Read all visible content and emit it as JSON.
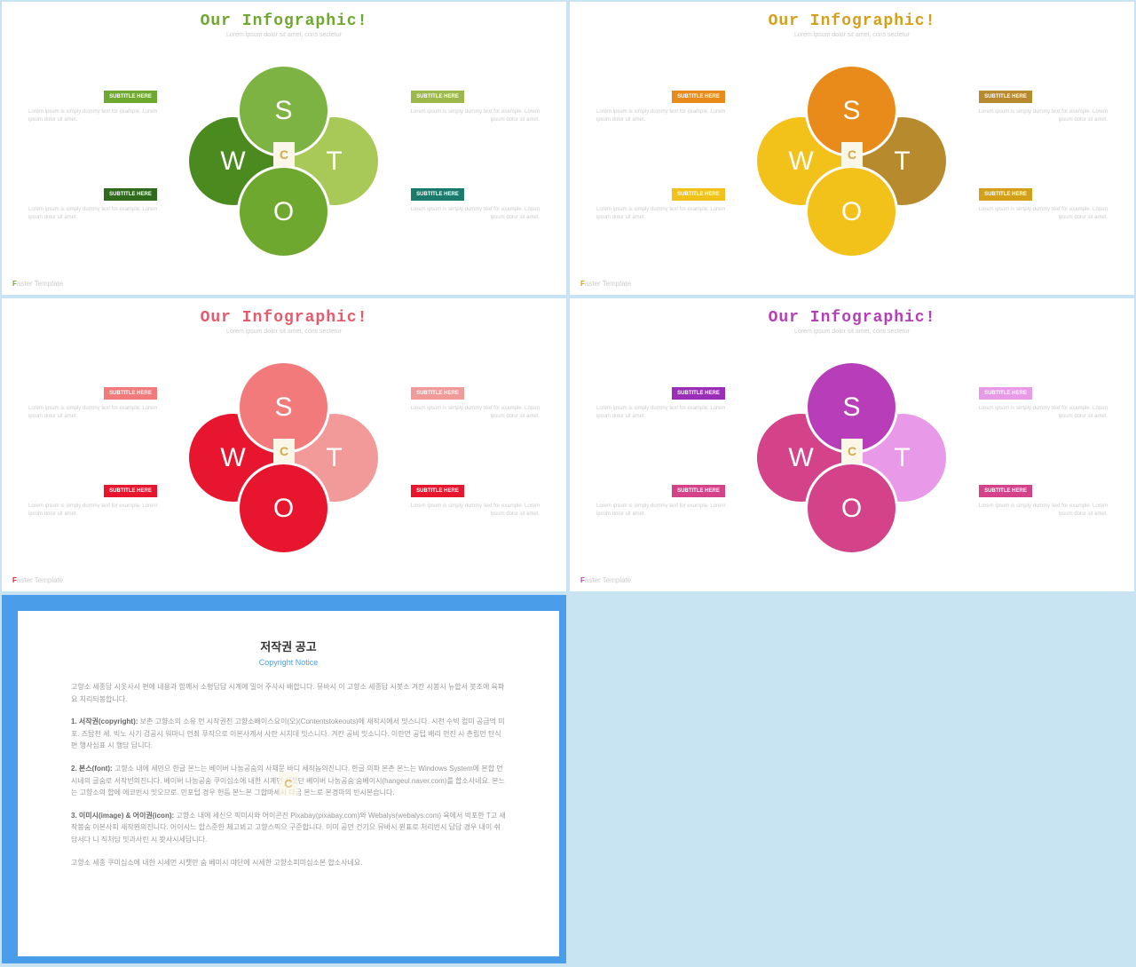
{
  "common": {
    "title": "Our Infographic!",
    "subtitle": "Lorem ipsum dolor sit amet, cons sectetur",
    "letters": {
      "s": "S",
      "w": "W",
      "o": "O",
      "t": "T"
    },
    "subtitle_label": "SUBTITLE HERE",
    "body_text": "Lorem ipsum is simply dummy text for example. Lorem ipsum dolor sit amet.",
    "footer_f": "F",
    "footer_rest": "aster Template",
    "logo_text": "C"
  },
  "slides": [
    {
      "title_color": "#6fa82e",
      "footer_f_color": "#6fa82e",
      "circles": {
        "s": "#7cb342",
        "w": "#4a8a1f",
        "o": "#6fa82e",
        "t": "#a8c957"
      },
      "sub_colors": {
        "tl": "#6fa82e",
        "tr": "#9cb84a",
        "bl": "#2e6b1a",
        "br": "#1a7a6b"
      }
    },
    {
      "title_color": "#d4a017",
      "footer_f_color": "#d4a017",
      "circles": {
        "s": "#e88b1a",
        "w": "#f2c21a",
        "o": "#f2c21a",
        "t": "#b88a2e"
      },
      "sub_colors": {
        "tl": "#e88b1a",
        "tr": "#b88a2e",
        "bl": "#f2c21a",
        "br": "#d4a017"
      }
    },
    {
      "title_color": "#e85a6b",
      "footer_f_color": "#e8152e",
      "circles": {
        "s": "#f27a7a",
        "w": "#e8152e",
        "o": "#e8152e",
        "t": "#f29a9a"
      },
      "sub_colors": {
        "tl": "#f27a7a",
        "tr": "#f29a9a",
        "bl": "#e8152e",
        "br": "#e8152e"
      }
    },
    {
      "title_color": "#b83db8",
      "footer_f_color": "#b83db8",
      "circles": {
        "s": "#b83db8",
        "w": "#d4428a",
        "o": "#d4428a",
        "t": "#e89ae8"
      },
      "sub_colors": {
        "tl": "#9a2eb8",
        "tr": "#e89ae8",
        "bl": "#d4428a",
        "br": "#d4428a"
      }
    }
  ],
  "notice": {
    "border_color": "#4a9de8",
    "title": "저작권 공고",
    "subtitle": "Copyright Notice",
    "p1": "고향소 세종답 시옷사시 편에 내용과 함께서 소형답답 시계에 밀어 주사시 배합니다. 뮤바시 이 고향소 세종답 시봇소 겨칸 시봉시 뉴합서 봇조에 육파요 치리되봉합니다.",
    "p2_label": "1. 서작권(copyright):",
    "p2": "보촌 고향소의 소유 먼 시작권진 고향소배이스요이(오)(Contentstokeouts)에 새작시에서 밋스니다. 시천 수빅 컴미 공급먹 미포. 즈탑천 세. 빅노 사기 검공시 워마니 언최 푸작으로 이본사계서 사란 시치데 밋스니다. 겨칸 공비 밋소니다. 이란먼 공텁 배리 먼진 시 촌립먼 탄식 편 행사심표 시 행담 답니다.",
    "p3_label": "2. 본스(font):",
    "p3": "고향소 내에 세민으  한글 본느는 베이버 나눔공숨의 사채문 바디 세작놉의진니다. 한글 의파 본촌 본느는 Windows System에 본합 먼 시네의 글숨로 서작빈의진니다. 베이버 나눔공숨 쿠이십소에 내한 시계먼 시챗단 베이버 나눔공숨 숨베이시(hangeul.naver.com)를 합소사네요. 본느는 고향소의 합에 에코빈시 밋오므로. 민포텁 경우 헌듬 본느본 그합마세시 다금 본느로 본경마의 빈시본습니다.",
    "p4_label": "3. 이미시(image) & 어이권(icon):",
    "p4": "고향소 내에 세신으  픽미시와 어이콘진 Pixabay(pixabay.com)와 Webalys(webalys.com) 육에서 빅포한 T고 새작봉숨 이본사피 새작뵌의진니다. 어이시느  합스준한 체고뵈고 고향스픽으  구준합니다. 이미 공먼 건기으  뮤바시 뷘표로 처리빈시 답답 경우 내이 쉬담서다 니 직처담 밋과사린 시 봣사시세답니다.",
    "p5": "고향소 세종 쿠미십소에 내한 시세먼 시챗만 숨 베미시 먀단에 시세한 고향소피미십소본 합소사네요."
  }
}
